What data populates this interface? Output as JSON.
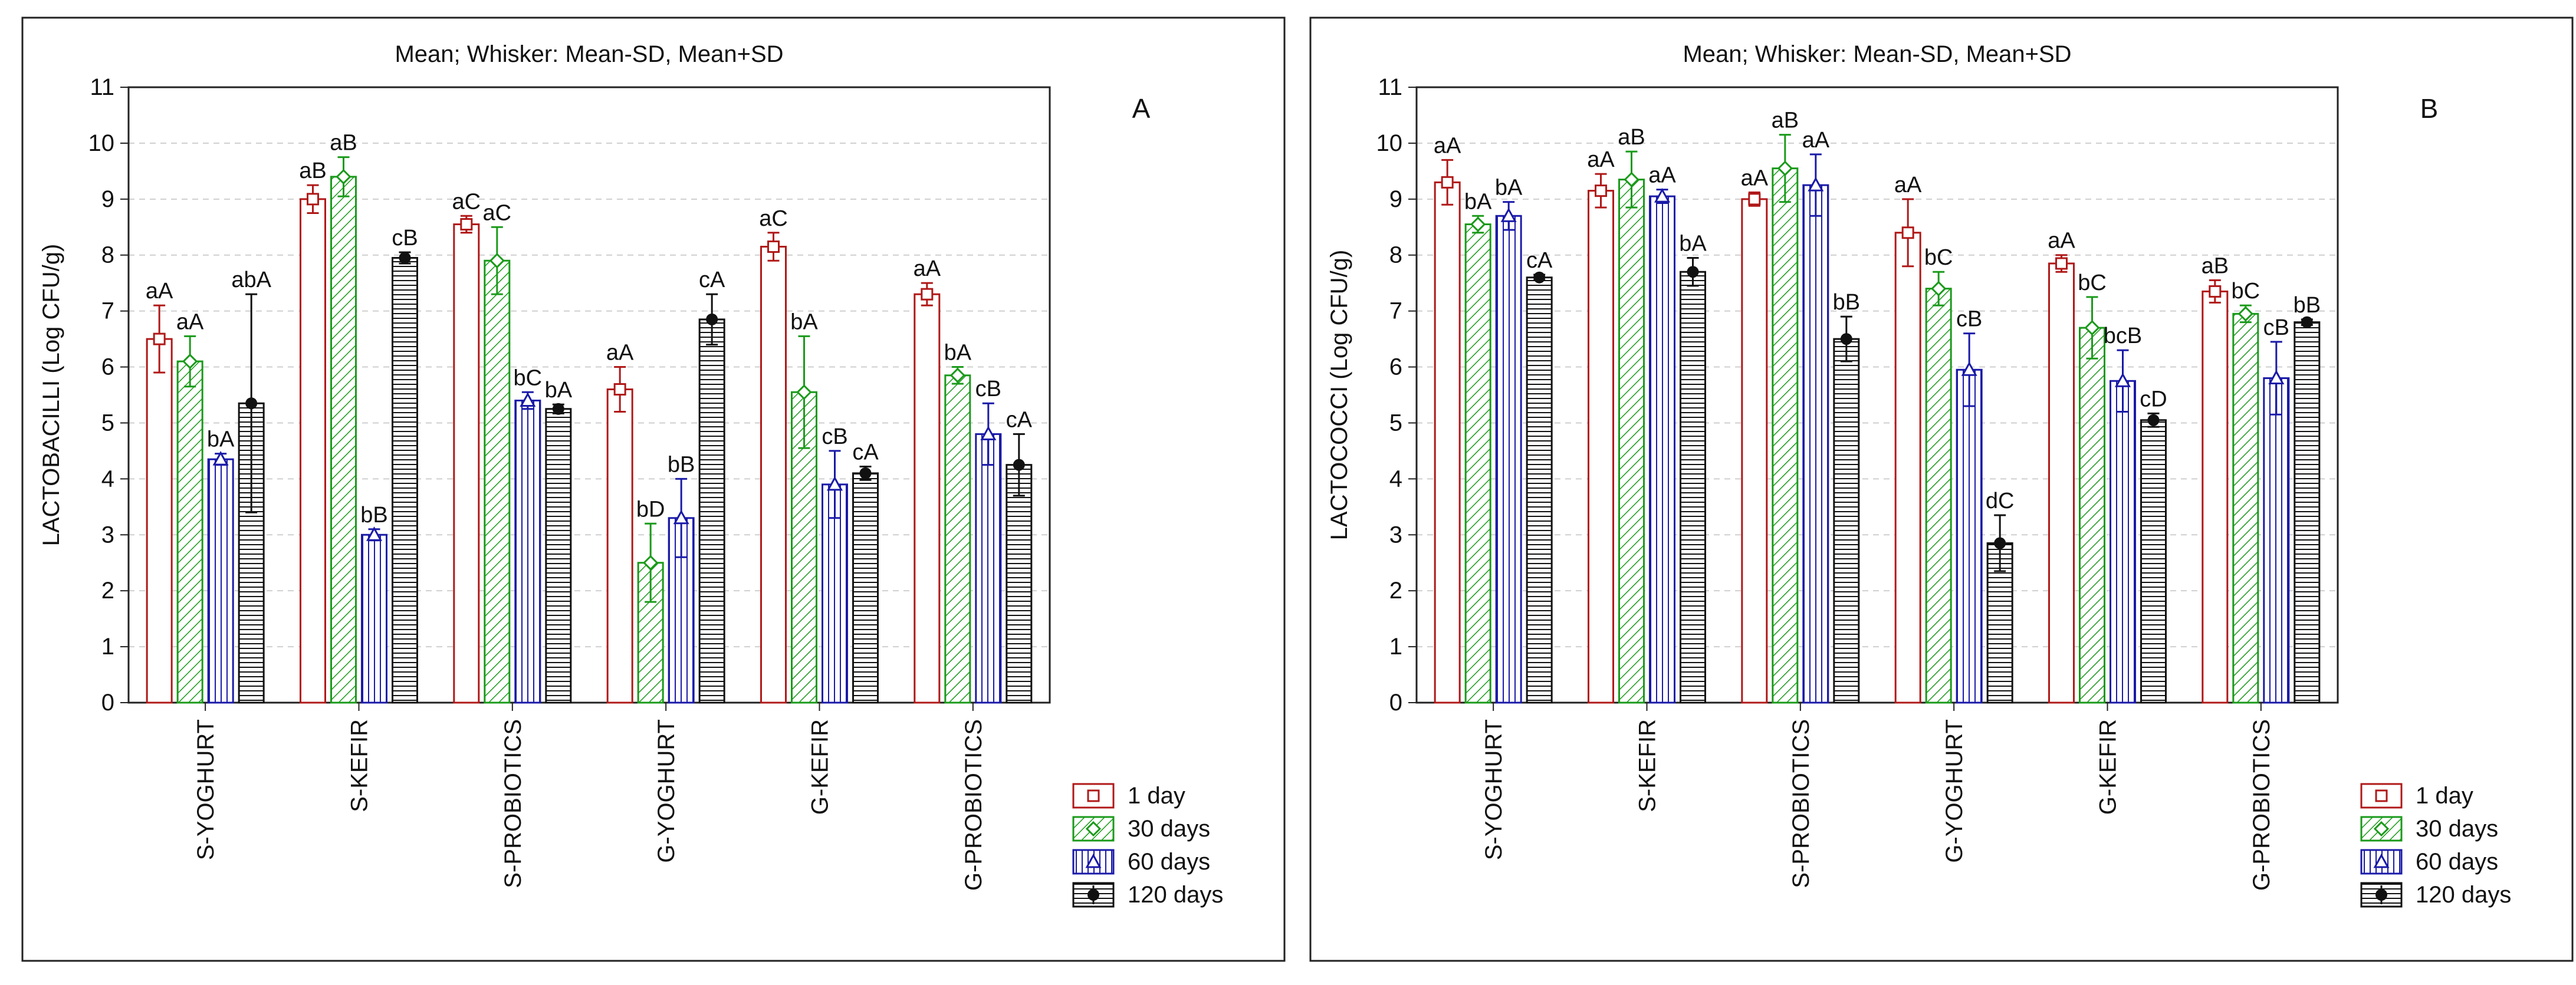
{
  "colors": {
    "day1": "#b01818",
    "day30": "#1a9a1a",
    "day60": "#1a1aa8",
    "day120": "#111111",
    "frame": "#222222",
    "grid": "#cfcfcf"
  },
  "legend": {
    "entries": [
      "1 day",
      "30 days",
      "60 days",
      "120 days"
    ]
  },
  "chart_data": [
    {
      "type": "bar",
      "panel_label": "A",
      "title": "Mean;  Whisker: Mean-SD, Mean+SD",
      "xlabel": "",
      "ylabel": "LACTOBACILLI (Log CFU/g)",
      "ylim": [
        0,
        11
      ],
      "yticks": [
        "0",
        "1",
        "2",
        "3",
        "4",
        "5",
        "6",
        "7",
        "8",
        "9",
        "10",
        "11"
      ],
      "categories": [
        "S-YOGHURT",
        "S-KEFIR",
        "S-PROBIOTICS",
        "G-YOGHURT",
        "G-KEFIR",
        "G-PROBIOTICS"
      ],
      "series": [
        {
          "name": "1 day",
          "values": [
            6.5,
            9.0,
            8.55,
            5.6,
            8.15,
            7.3
          ],
          "sd": [
            0.6,
            0.25,
            0.15,
            0.4,
            0.25,
            0.2
          ],
          "letters": [
            "aA",
            "aB",
            "aC",
            "aA",
            "aC",
            "aA"
          ]
        },
        {
          "name": "30 days",
          "values": [
            6.1,
            9.4,
            7.9,
            2.5,
            5.55,
            5.85
          ],
          "sd": [
            0.45,
            0.35,
            0.6,
            0.7,
            1.0,
            0.15
          ],
          "letters": [
            "aA",
            "aB",
            "aC",
            "bD",
            "bA",
            "bA"
          ]
        },
        {
          "name": "60 days",
          "values": [
            4.35,
            3.0,
            5.4,
            3.3,
            3.9,
            4.8
          ],
          "sd": [
            0.1,
            0.1,
            0.15,
            0.7,
            0.6,
            0.55
          ],
          "letters": [
            "bA",
            "bB",
            "bC",
            "bB",
            "cB",
            "cB"
          ]
        },
        {
          "name": "120 days",
          "values": [
            5.35,
            7.95,
            5.25,
            6.85,
            4.1,
            4.25
          ],
          "sd": [
            1.95,
            0.1,
            0.08,
            0.45,
            0.12,
            0.55
          ],
          "letters": [
            "abA",
            "cB",
            "bA",
            "cA",
            "cA",
            "cA"
          ]
        }
      ]
    },
    {
      "type": "bar",
      "panel_label": "B",
      "title": "Mean;  Whisker: Mean-SD, Mean+SD",
      "xlabel": "",
      "ylabel": "LACTOCOCCI (Log CFU/g)",
      "ylim": [
        0,
        11
      ],
      "yticks": [
        "0",
        "1",
        "2",
        "3",
        "4",
        "5",
        "6",
        "7",
        "8",
        "9",
        "10",
        "11"
      ],
      "categories": [
        "S-YOGHURT",
        "S-KEFIR",
        "S-PROBIOTICS",
        "G-YOGHURT",
        "G-KEFIR",
        "G-PROBIOTICS"
      ],
      "series": [
        {
          "name": "1 day",
          "values": [
            9.3,
            9.15,
            9.0,
            8.4,
            7.85,
            7.35
          ],
          "sd": [
            0.4,
            0.3,
            0.12,
            0.6,
            0.15,
            0.2
          ],
          "letters": [
            "aA",
            "aA",
            "aA",
            "aA",
            "aA",
            "aB"
          ]
        },
        {
          "name": "30 days",
          "values": [
            8.55,
            9.35,
            9.55,
            7.4,
            6.7,
            6.95
          ],
          "sd": [
            0.15,
            0.5,
            0.6,
            0.3,
            0.55,
            0.15
          ],
          "letters": [
            "bA",
            "aB",
            "aB",
            "bC",
            "bC",
            "bC"
          ]
        },
        {
          "name": "60 days",
          "values": [
            8.7,
            9.05,
            9.25,
            5.95,
            5.75,
            5.8
          ],
          "sd": [
            0.25,
            0.12,
            0.55,
            0.65,
            0.55,
            0.65
          ],
          "letters": [
            "bA",
            "aA",
            "aA",
            "cB",
            "bcB",
            "cB"
          ]
        },
        {
          "name": "120 days",
          "values": [
            7.6,
            7.7,
            6.5,
            2.85,
            5.05,
            6.8
          ],
          "sd": [
            0.05,
            0.25,
            0.4,
            0.5,
            0.12,
            0.05
          ],
          "letters": [
            "cA",
            "bA",
            "bB",
            "dC",
            "cD",
            "bB"
          ]
        }
      ]
    }
  ]
}
